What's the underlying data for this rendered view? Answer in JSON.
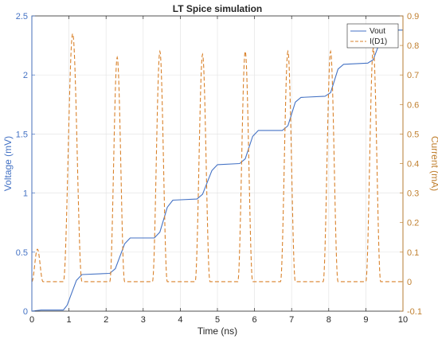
{
  "chart_data": {
    "type": "line",
    "title": "LT Spice simulation",
    "xlabel": "Time (ns)",
    "ylabel_left": "Voltage (mV)",
    "ylabel_right": "Current (mA)",
    "xlim": [
      0,
      10
    ],
    "ylim_left": [
      0,
      2.5
    ],
    "ylim_right": [
      -0.1,
      0.9
    ],
    "x_ticks": [
      0,
      1,
      2,
      3,
      4,
      5,
      6,
      7,
      8,
      9,
      10
    ],
    "x_tick_labels": [
      "0",
      "1",
      "2",
      "3",
      "4",
      "5",
      "6",
      "7",
      "8",
      "9",
      "10"
    ],
    "y_left_ticks": [
      0,
      0.5,
      1,
      1.5,
      2,
      2.5
    ],
    "y_left_tick_labels": [
      "0",
      "0.5",
      "1",
      "1.5",
      "2",
      "2.5"
    ],
    "y_right_ticks": [
      -0.1,
      0,
      0.1,
      0.2,
      0.3,
      0.4,
      0.5,
      0.6,
      0.7,
      0.8,
      0.9
    ],
    "y_right_tick_labels": [
      "-0.1",
      "0",
      "0.1",
      "0.2",
      "0.3",
      "0.4",
      "0.5",
      "0.6",
      "0.7",
      "0.8",
      "0.9"
    ],
    "grid": true,
    "legend_position": "top-right",
    "series": [
      {
        "name": "Vout",
        "axis": "left",
        "style": "solid",
        "color": "#4472C4",
        "x": [
          0,
          0.25,
          0.5,
          0.85,
          0.95,
          1.2,
          1.35,
          2.1,
          2.25,
          2.5,
          2.65,
          3.3,
          3.45,
          3.65,
          3.8,
          4.45,
          4.6,
          4.85,
          5.0,
          5.6,
          5.75,
          5.95,
          6.1,
          6.75,
          6.9,
          7.1,
          7.25,
          7.9,
          8.05,
          8.25,
          8.4,
          9.05,
          9.2,
          9.45,
          9.6,
          10
        ],
        "y": [
          0,
          0.01,
          0.01,
          0.01,
          0.05,
          0.26,
          0.31,
          0.32,
          0.36,
          0.57,
          0.62,
          0.62,
          0.67,
          0.88,
          0.94,
          0.95,
          0.99,
          1.19,
          1.24,
          1.25,
          1.29,
          1.48,
          1.53,
          1.53,
          1.57,
          1.77,
          1.81,
          1.82,
          1.85,
          2.05,
          2.09,
          2.1,
          2.13,
          2.34,
          2.38,
          2.38
        ]
      },
      {
        "name": "I(D1)",
        "axis": "right",
        "style": "dashed",
        "color": "#D9822B",
        "pulses": [
          {
            "center": 0.15,
            "peak": 0.11,
            "halfwidth": 0.15
          },
          {
            "center": 1.1,
            "peak": 0.84,
            "halfwidth": 0.25
          },
          {
            "center": 2.3,
            "peak": 0.76,
            "halfwidth": 0.2
          },
          {
            "center": 3.45,
            "peak": 0.78,
            "halfwidth": 0.2
          },
          {
            "center": 4.6,
            "peak": 0.77,
            "halfwidth": 0.2
          },
          {
            "center": 5.75,
            "peak": 0.78,
            "halfwidth": 0.2
          },
          {
            "center": 6.9,
            "peak": 0.78,
            "halfwidth": 0.2
          },
          {
            "center": 8.05,
            "peak": 0.78,
            "halfwidth": 0.2
          },
          {
            "center": 9.2,
            "peak": 0.79,
            "halfwidth": 0.2
          }
        ],
        "baseline": 0
      }
    ]
  },
  "colors": {
    "left_axis": "#4472C4",
    "right_axis": "#C08030",
    "grid": "#e5e5e5",
    "frame": "#262626"
  }
}
